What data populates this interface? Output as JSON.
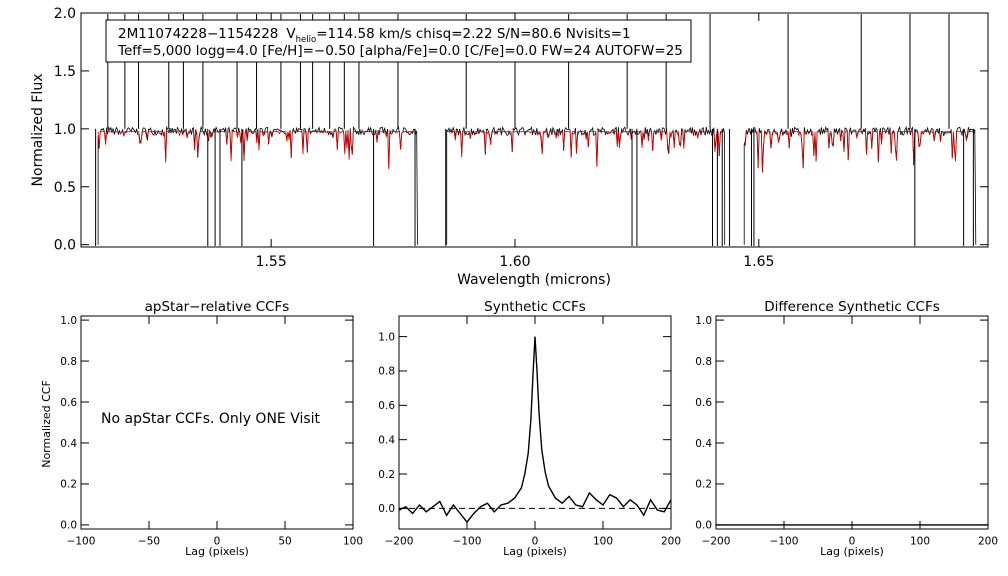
{
  "chart_data": [
    {
      "type": "line",
      "id": "spectrum",
      "xlabel": "Wavelength (microns)",
      "ylabel": "Normalized Flux",
      "xlim": [
        1.511,
        1.697
      ],
      "ylim": [
        -0.02,
        2.0
      ],
      "xticks": [
        "1.55",
        "1.60",
        "1.65"
      ],
      "xtick_values": [
        1.55,
        1.6,
        1.65
      ],
      "yticks": [
        "0.0",
        "0.5",
        "1.0",
        "1.5",
        "2.0"
      ],
      "ytick_values": [
        0.0,
        0.5,
        1.0,
        1.5,
        2.0
      ],
      "info_box": {
        "star": "2M11074228−1154228",
        "v_symbol": "V",
        "v_subscript": "helio",
        "v_rest": "=114.58 km/s  chisq=2.22  S/N=80.6  Nvisits=1",
        "line2": "Teff=5,000 logg=4.0 [Fe/H]=−0.50 [alpha/Fe]=0.0 [C/Fe]=0.0 FW=24 AUTOFW=25"
      },
      "chips": [
        [
          1.5145,
          1.58
        ],
        [
          1.586,
          1.643
        ],
        [
          1.647,
          1.6945
        ]
      ],
      "series_colors": {
        "observed": "#000000",
        "model": "#dd0000"
      },
      "spikes_up": [
        1.5165,
        1.52,
        1.5228,
        1.529,
        1.532,
        1.536,
        1.543,
        1.547,
        1.552,
        1.556,
        1.5585,
        1.562,
        1.565,
        1.568,
        1.576,
        1.59,
        1.6,
        1.611,
        1.623,
        1.631,
        1.64,
        1.656,
        1.671,
        1.681,
        1.689
      ],
      "spikes_down": [
        1.514,
        1.537,
        1.5385,
        1.5395,
        1.544,
        1.571,
        1.5795,
        1.5858,
        1.624,
        1.625,
        1.6405,
        1.6415,
        1.6425,
        1.644,
        1.6485,
        1.649,
        1.682,
        1.692,
        1.694
      ]
    },
    {
      "type": "text",
      "id": "apstar-ccf",
      "title": "apStar−relative CCFs",
      "xlabel": "Lag (pixels)",
      "ylabel": "Normalized CCF",
      "xlim": [
        -100,
        100
      ],
      "ylim": [
        -0.02,
        1.02
      ],
      "xticks": [
        "−100",
        "−50",
        "0",
        "50",
        "100"
      ],
      "xtick_values": [
        -100,
        -50,
        0,
        50,
        100
      ],
      "yticks": [
        "0.0",
        "0.2",
        "0.4",
        "0.6",
        "0.8",
        "1.0"
      ],
      "ytick_values": [
        0.0,
        0.2,
        0.4,
        0.6,
        0.8,
        1.0
      ],
      "message": "No apStar CCFs.  Only ONE Visit"
    },
    {
      "type": "line",
      "id": "synthetic-ccf",
      "title": "Synthetic CCFs",
      "xlabel": "Lag (pixels)",
      "xlim": [
        -200,
        200
      ],
      "ylim": [
        -0.12,
        1.12
      ],
      "xticks": [
        "−200",
        "−100",
        "0",
        "100",
        "200"
      ],
      "xtick_values": [
        -200,
        -100,
        0,
        100,
        200
      ],
      "yticks": [
        "0.0",
        "0.2",
        "0.4",
        "0.6",
        "0.8",
        "1.0"
      ],
      "ytick_values": [
        0.0,
        0.2,
        0.4,
        0.6,
        0.8,
        1.0
      ],
      "x": [
        -200,
        -190,
        -180,
        -170,
        -160,
        -150,
        -140,
        -130,
        -120,
        -110,
        -100,
        -90,
        -80,
        -70,
        -60,
        -50,
        -40,
        -30,
        -20,
        -15,
        -10,
        -6,
        -3,
        0,
        3,
        6,
        10,
        15,
        20,
        30,
        40,
        50,
        60,
        70,
        80,
        90,
        100,
        110,
        120,
        130,
        140,
        150,
        160,
        170,
        180,
        190,
        200
      ],
      "values": [
        -0.01,
        0.01,
        -0.03,
        0.02,
        -0.02,
        0.01,
        0.04,
        -0.04,
        0.02,
        -0.03,
        -0.08,
        -0.03,
        0.01,
        0.03,
        -0.02,
        0.02,
        0.03,
        0.06,
        0.12,
        0.2,
        0.32,
        0.52,
        0.78,
        1.0,
        0.8,
        0.55,
        0.34,
        0.21,
        0.13,
        0.06,
        0.03,
        0.07,
        0.02,
        0.01,
        0.09,
        0.05,
        0.02,
        0.08,
        0.06,
        0.01,
        0.05,
        0.02,
        -0.04,
        0.05,
        -0.01,
        -0.02,
        0.05
      ],
      "baseline": 0.0
    },
    {
      "type": "line",
      "id": "difference-ccf",
      "title": "Difference Synthetic CCFs",
      "xlabel": "Lag (pixels)",
      "xlim": [
        -200,
        200
      ],
      "ylim": [
        -0.02,
        1.02
      ],
      "xticks": [
        "−200",
        "−100",
        "0",
        "100",
        "200"
      ],
      "xtick_values": [
        -200,
        -100,
        0,
        100,
        200
      ],
      "yticks": [
        "0.0",
        "0.2",
        "0.4",
        "0.6",
        "0.8",
        "1.0"
      ],
      "ytick_values": [
        0.0,
        0.2,
        0.4,
        0.6,
        0.8,
        1.0
      ],
      "x": [
        -200,
        200
      ],
      "values": [
        0.0,
        0.0
      ]
    }
  ]
}
